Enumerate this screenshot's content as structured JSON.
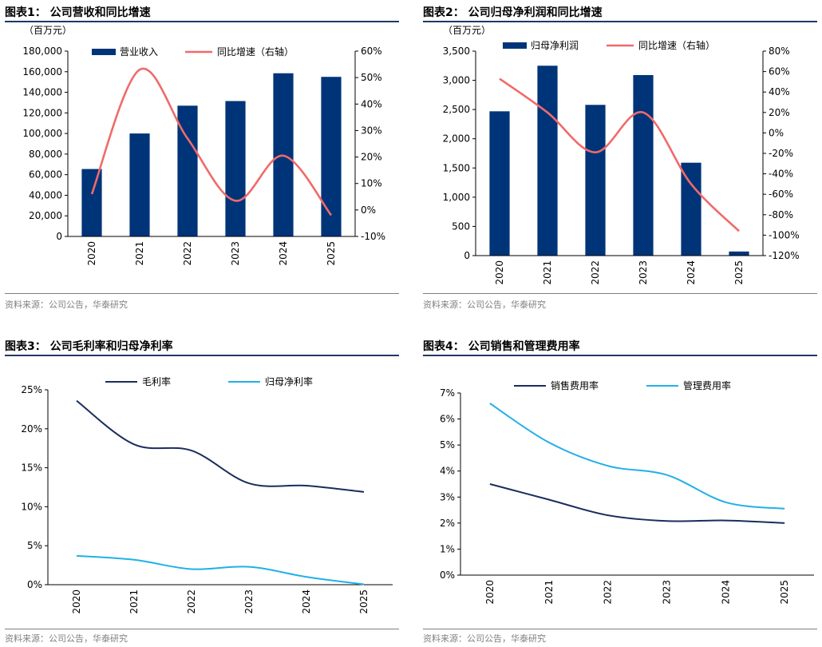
{
  "source_text": "资料来源：公司公告，华泰研究",
  "colors": {
    "navy": "#003478",
    "red": "#f06a6a",
    "dark_line": "#1a2d5c",
    "light_line": "#21b0e8",
    "rule": "#1f3864"
  },
  "chart_data": [
    {
      "id": "chart1",
      "type": "bar+line",
      "title": "图表1：  公司营收和同比增速",
      "unit_label": "（百万元）",
      "categories": [
        "2020",
        "2021",
        "2022",
        "2023",
        "2024",
        "2025"
      ],
      "bar_series": {
        "name": "营业收入",
        "values": [
          65500,
          100000,
          127000,
          131500,
          158500,
          155000
        ]
      },
      "line_series": {
        "name": "同比增速（右轴）",
        "values": [
          6,
          53,
          27,
          3.5,
          20.5,
          -2
        ]
      },
      "y_left": {
        "range": [
          0,
          180000
        ],
        "ticks": [
          "0",
          "20,000",
          "40,000",
          "60,000",
          "80,000",
          "100,000",
          "120,000",
          "140,000",
          "160,000",
          "180,000"
        ]
      },
      "y_right": {
        "range": [
          -10,
          60
        ],
        "ticks": [
          "-10%",
          "0%",
          "10%",
          "20%",
          "30%",
          "40%",
          "50%",
          "60%"
        ]
      }
    },
    {
      "id": "chart2",
      "type": "bar+line",
      "title": "图表2：  公司归母净利润和同比增速",
      "unit_label": "（百万元）",
      "categories": [
        "2020",
        "2021",
        "2022",
        "2023",
        "2024",
        "2025"
      ],
      "bar_series": {
        "name": "归母净利润",
        "values": [
          2470,
          3250,
          2580,
          3090,
          1590,
          70
        ]
      },
      "line_series": {
        "name": "同比增速（右轴）",
        "values": [
          53,
          20,
          -19,
          20,
          -50,
          -96
        ]
      },
      "y_left": {
        "range": [
          0,
          3500
        ],
        "ticks": [
          "0",
          "500",
          "1,000",
          "1,500",
          "2,000",
          "2,500",
          "3,000",
          "3,500"
        ]
      },
      "y_right": {
        "range": [
          -120,
          80
        ],
        "ticks": [
          "-120%",
          "-100%",
          "-80%",
          "-60%",
          "-40%",
          "-20%",
          "0%",
          "20%",
          "40%",
          "60%",
          "80%"
        ]
      }
    },
    {
      "id": "chart3",
      "type": "line",
      "title": "图表3：  公司毛利率和归母净利率",
      "categories": [
        "2020",
        "2021",
        "2022",
        "2023",
        "2024",
        "2025"
      ],
      "series": [
        {
          "name": "毛利率",
          "values": [
            23.6,
            18.0,
            17.2,
            13.0,
            12.7,
            11.9
          ]
        },
        {
          "name": "归母净利率",
          "values": [
            3.7,
            3.2,
            2.0,
            2.3,
            1.0,
            0.05
          ]
        }
      ],
      "y": {
        "range": [
          0,
          25
        ],
        "ticks": [
          "0%",
          "5%",
          "10%",
          "15%",
          "20%",
          "25%"
        ]
      }
    },
    {
      "id": "chart4",
      "type": "line",
      "title": "图表4：  公司销售和管理费用率",
      "categories": [
        "2020",
        "2021",
        "2022",
        "2023",
        "2024",
        "2025"
      ],
      "series": [
        {
          "name": "销售费用率",
          "values": [
            3.5,
            2.9,
            2.3,
            2.08,
            2.1,
            2.0
          ]
        },
        {
          "name": "管理费用率",
          "values": [
            6.6,
            5.1,
            4.2,
            3.85,
            2.8,
            2.55
          ]
        }
      ],
      "y": {
        "range": [
          0,
          7
        ],
        "ticks": [
          "0%",
          "1%",
          "2%",
          "3%",
          "4%",
          "5%",
          "6%",
          "7%"
        ]
      }
    }
  ]
}
